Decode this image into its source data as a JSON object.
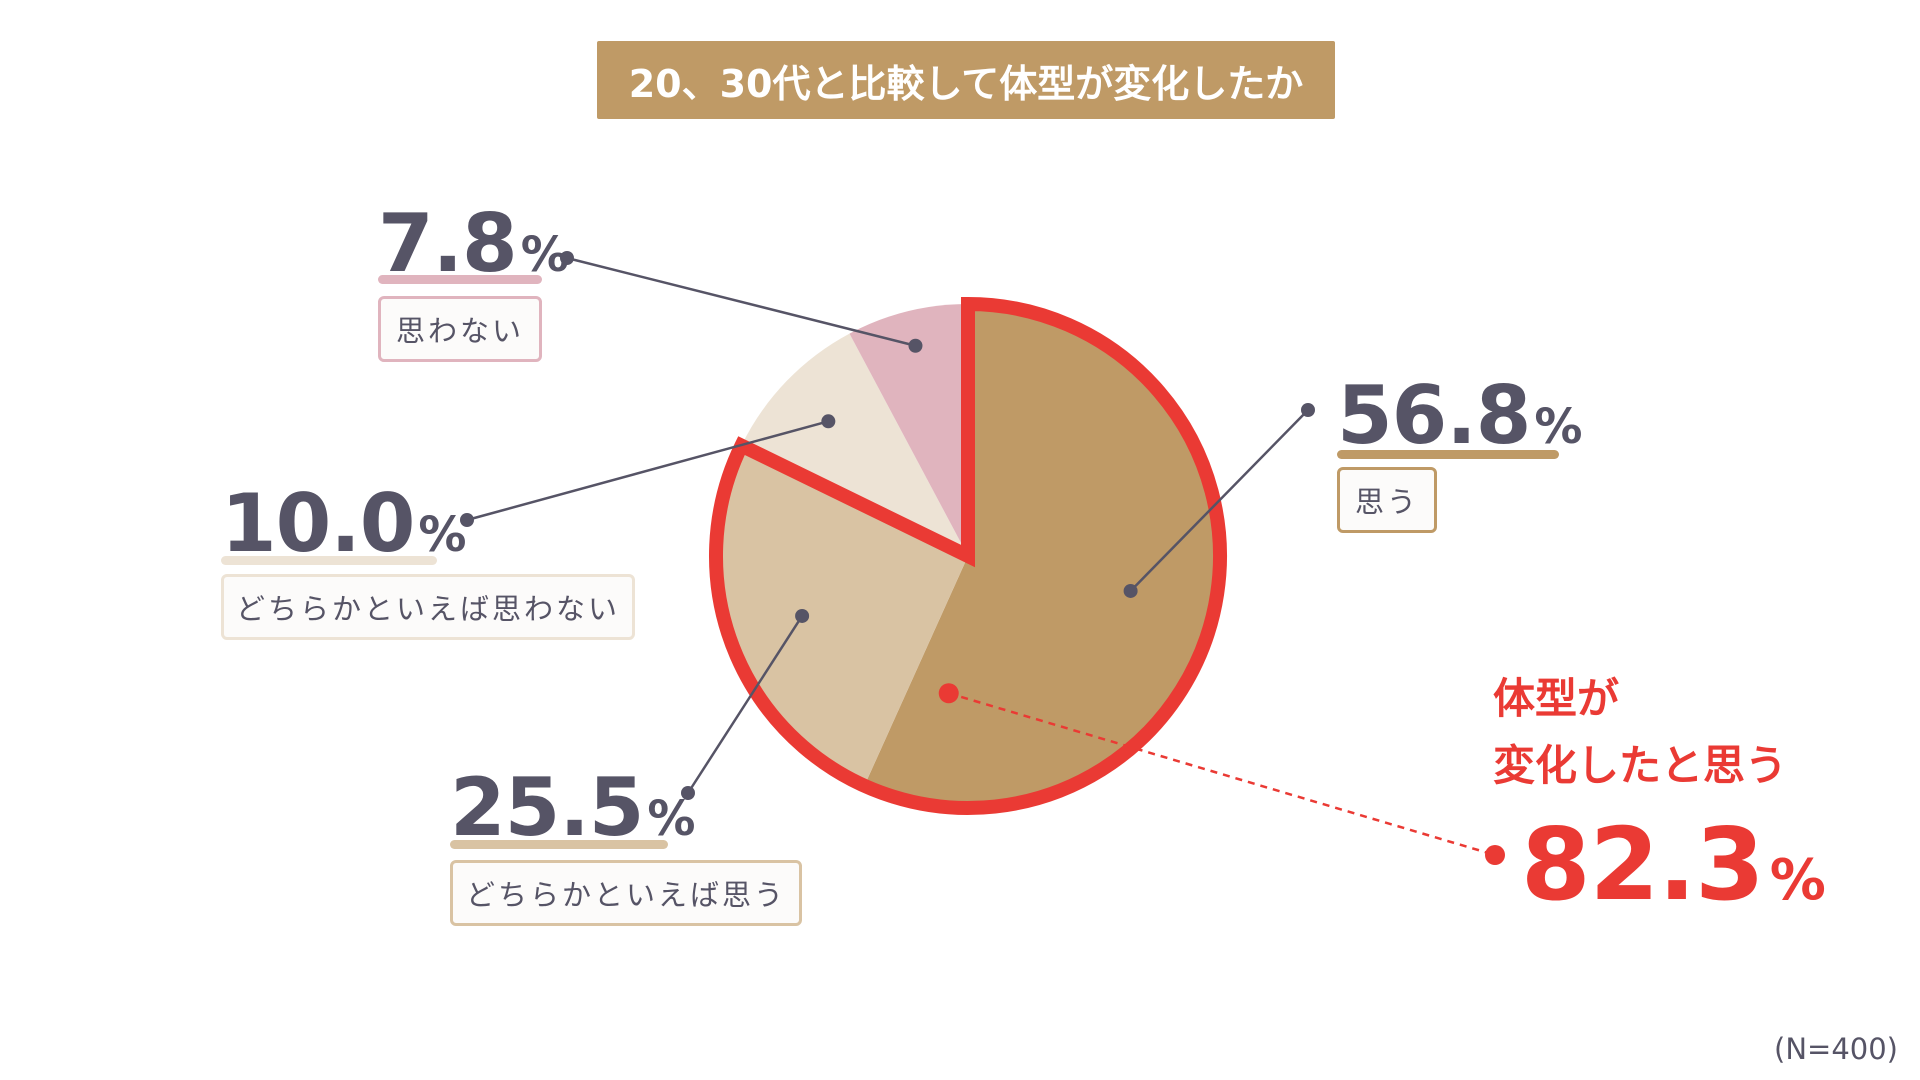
{
  "title": "20、30代と比較して体型が変化したか",
  "chart_data": {
    "type": "pie",
    "title": "20、30代と比較して体型が変化したか",
    "slices": [
      {
        "label": "思う",
        "value": 56.8,
        "display": "56.8",
        "color": "#bf9a66"
      },
      {
        "label": "どちらかといえば思う",
        "value": 25.5,
        "display": "25.5",
        "color": "#d9c3a3"
      },
      {
        "label": "どちらかといえば思わない",
        "value": 10.0,
        "display": "10.0",
        "color": "#ede3d5"
      },
      {
        "label": "思わない",
        "value": 7.8,
        "display": "7.8",
        "color": "#e0b4be"
      }
    ],
    "unit": "%",
    "highlight": {
      "label_line1": "体型が",
      "label_line2": "変化したと思う",
      "value": 82.3,
      "display": "82.3",
      "color": "#ea3a34"
    },
    "note": "(N=400)"
  },
  "colors": {
    "title_bg": "#bf9a66",
    "text": "#565466",
    "leader": "#565466",
    "highlight": "#ea3a34"
  }
}
